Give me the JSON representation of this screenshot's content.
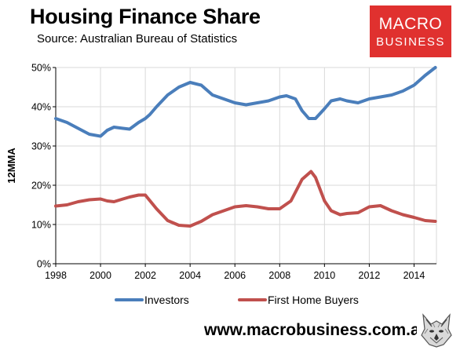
{
  "header": {
    "title": "Housing Finance Share",
    "source": "Source: Australian Bureau of Statistics"
  },
  "brand": {
    "line1": "MACRO",
    "line2": "BUSINESS",
    "color": "#e0312f"
  },
  "footer": {
    "url": "www.macrobusiness.com.au",
    "logo_icon": "wolf-head-icon"
  },
  "chart_data": {
    "type": "line",
    "title": "Housing Finance Share",
    "subtitle": "Source: Australian Bureau of Statistics",
    "xlabel": "",
    "ylabel": "12MMA",
    "xlim": [
      1998,
      2015
    ],
    "ylim": [
      0,
      0.5
    ],
    "x_ticks": [
      "1998",
      "2000",
      "2002",
      "2004",
      "2006",
      "2008",
      "2010",
      "2012",
      "2014"
    ],
    "y_ticks": [
      "0%",
      "10%",
      "20%",
      "30%",
      "40%",
      "50%"
    ],
    "grid": "horizontal-and-vertical",
    "legend_position": "bottom",
    "series": [
      {
        "name": "Investors",
        "color": "#4a7ebb",
        "x": [
          1998,
          1998.5,
          1999,
          1999.5,
          2000,
          2000.3,
          2000.6,
          2001,
          2001.3,
          2001.7,
          2002,
          2002.2,
          2002.5,
          2003,
          2003.5,
          2004,
          2004.5,
          2005,
          2005.5,
          2006,
          2006.5,
          2007,
          2007.5,
          2008,
          2008.3,
          2008.7,
          2009,
          2009.3,
          2009.6,
          2010,
          2010.3,
          2010.7,
          2011,
          2011.5,
          2012,
          2012.5,
          2013,
          2013.5,
          2014,
          2014.5,
          2014.95
        ],
        "y": [
          0.37,
          0.36,
          0.345,
          0.33,
          0.325,
          0.34,
          0.348,
          0.345,
          0.343,
          0.36,
          0.37,
          0.38,
          0.4,
          0.43,
          0.45,
          0.462,
          0.455,
          0.43,
          0.42,
          0.41,
          0.405,
          0.41,
          0.415,
          0.425,
          0.428,
          0.42,
          0.39,
          0.37,
          0.37,
          0.395,
          0.415,
          0.42,
          0.415,
          0.41,
          0.42,
          0.425,
          0.43,
          0.44,
          0.455,
          0.48,
          0.5
        ]
      },
      {
        "name": "First Home Buyers",
        "color": "#c0504d",
        "x": [
          1998,
          1998.5,
          1999,
          1999.5,
          2000,
          2000.3,
          2000.6,
          2001,
          2001.3,
          2001.7,
          2002,
          2002.5,
          2003,
          2003.5,
          2004,
          2004.5,
          2005,
          2005.5,
          2006,
          2006.5,
          2007,
          2007.5,
          2008,
          2008.5,
          2009,
          2009.4,
          2009.6,
          2010,
          2010.3,
          2010.7,
          2011,
          2011.5,
          2012,
          2012.5,
          2013,
          2013.5,
          2014,
          2014.5,
          2014.95
        ],
        "y": [
          0.147,
          0.15,
          0.158,
          0.163,
          0.165,
          0.16,
          0.158,
          0.165,
          0.17,
          0.175,
          0.175,
          0.14,
          0.11,
          0.098,
          0.096,
          0.108,
          0.125,
          0.135,
          0.145,
          0.148,
          0.145,
          0.14,
          0.14,
          0.16,
          0.215,
          0.235,
          0.22,
          0.16,
          0.135,
          0.125,
          0.128,
          0.13,
          0.145,
          0.148,
          0.135,
          0.125,
          0.118,
          0.11,
          0.108
        ]
      }
    ]
  }
}
